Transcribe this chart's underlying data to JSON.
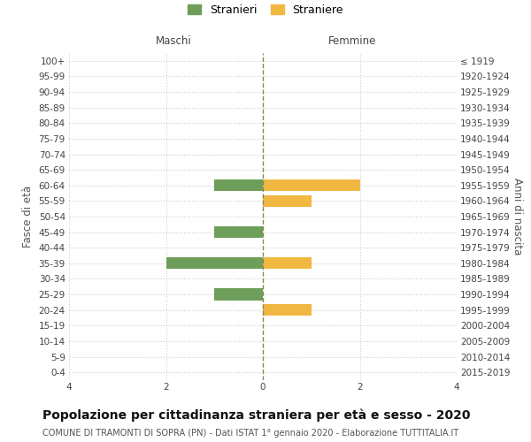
{
  "age_groups": [
    "100+",
    "95-99",
    "90-94",
    "85-89",
    "80-84",
    "75-79",
    "70-74",
    "65-69",
    "60-64",
    "55-59",
    "50-54",
    "45-49",
    "40-44",
    "35-39",
    "30-34",
    "25-29",
    "20-24",
    "15-19",
    "10-14",
    "5-9",
    "0-4"
  ],
  "birth_years": [
    "≤ 1919",
    "1920-1924",
    "1925-1929",
    "1930-1934",
    "1935-1939",
    "1940-1944",
    "1945-1949",
    "1950-1954",
    "1955-1959",
    "1960-1964",
    "1965-1969",
    "1970-1974",
    "1975-1979",
    "1980-1984",
    "1985-1989",
    "1990-1994",
    "1995-1999",
    "2000-2004",
    "2005-2009",
    "2010-2014",
    "2015-2019"
  ],
  "maschi_values": [
    0,
    0,
    0,
    0,
    0,
    0,
    0,
    0,
    -1,
    0,
    0,
    -1,
    0,
    -2,
    0,
    -1,
    0,
    0,
    0,
    0,
    0
  ],
  "femmine_values": [
    0,
    0,
    0,
    0,
    0,
    0,
    0,
    0,
    2,
    1,
    0,
    0,
    0,
    1,
    0,
    0,
    1,
    0,
    0,
    0,
    0
  ],
  "bar_color_maschi": "#6d9e5a",
  "bar_color_femmine": "#f0b840",
  "dashed_line_color": "#888855",
  "grid_color": "#cccccc",
  "background_color": "#ffffff",
  "title": "Popolazione per cittadinanza straniera per età e sesso - 2020",
  "subtitle": "COMUNE DI TRAMONTI DI SOPRA (PN) - Dati ISTAT 1° gennaio 2020 - Elaborazione TUTTITALIA.IT",
  "label_maschi": "Maschi",
  "label_femmine": "Femmine",
  "legend_stranieri": "Stranieri",
  "legend_straniere": "Straniere",
  "ylabel_left": "Fasce di età",
  "ylabel_right": "Anni di nascita",
  "xlim": [
    -4,
    4
  ],
  "xticks": [
    -4,
    -2,
    0,
    2,
    4
  ],
  "xticklabels": [
    "4",
    "2",
    "0",
    "2",
    "4"
  ],
  "bar_height": 0.75,
  "title_fontsize": 10,
  "subtitle_fontsize": 7,
  "tick_fontsize": 7.5,
  "label_fontsize": 8.5
}
